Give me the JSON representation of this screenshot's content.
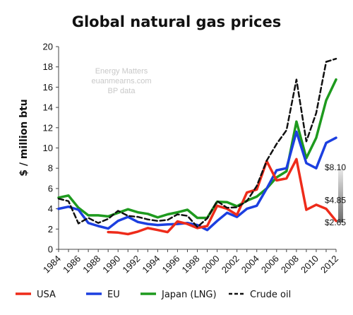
{
  "chart_data": {
    "type": "line",
    "title": "Global natural gas prices",
    "xlabel": "",
    "ylabel": "$ / million btu",
    "xlim": [
      1984,
      2012
    ],
    "ylim": [
      0,
      20
    ],
    "y_ticks": [
      0,
      2,
      4,
      6,
      8,
      10,
      12,
      14,
      16,
      18,
      20
    ],
    "x_ticks": [
      1984,
      1986,
      1988,
      1990,
      1992,
      1994,
      1996,
      1998,
      2000,
      2002,
      2004,
      2006,
      2008,
      2010,
      2012
    ],
    "grid": false,
    "legend_position": "bottom",
    "watermark": [
      "Energy Matters",
      "euanmearns.com",
      "BP data"
    ],
    "callouts": [
      {
        "label": "$8.10",
        "value": 8.1
      },
      {
        "label": "$4.85",
        "value": 4.85
      },
      {
        "label": "$2.65",
        "value": 2.65
      }
    ],
    "series": [
      {
        "name": "USA",
        "color": "#ee2b1a",
        "style": "solid",
        "x": [
          1989,
          1990,
          1991,
          1992,
          1993,
          1994,
          1995,
          1996,
          1997,
          1998,
          1999,
          2000,
          2001,
          2002,
          2003,
          2004,
          2005,
          2006,
          2007,
          2008,
          2009,
          2010,
          2011,
          2012
        ],
        "values": [
          1.7,
          1.65,
          1.5,
          1.75,
          2.1,
          1.9,
          1.7,
          2.75,
          2.5,
          2.1,
          2.3,
          4.3,
          4.0,
          3.4,
          5.6,
          5.9,
          8.7,
          6.8,
          7.0,
          8.9,
          3.9,
          4.4,
          4.0,
          2.8
        ]
      },
      {
        "name": "EU",
        "color": "#1c3fe0",
        "style": "solid",
        "x": [
          1984,
          1985,
          1986,
          1987,
          1988,
          1989,
          1990,
          1991,
          1992,
          1993,
          1994,
          1995,
          1996,
          1997,
          1998,
          1999,
          2000,
          2001,
          2002,
          2003,
          2004,
          2005,
          2006,
          2007,
          2008,
          2009,
          2010,
          2011,
          2012
        ],
        "values": [
          4.0,
          4.2,
          3.9,
          2.6,
          2.3,
          2.05,
          2.8,
          3.2,
          2.7,
          2.5,
          2.4,
          2.45,
          2.5,
          2.6,
          2.4,
          1.9,
          2.8,
          3.6,
          3.2,
          4.0,
          4.3,
          6.0,
          7.8,
          8.0,
          11.6,
          8.5,
          8.0,
          10.5,
          11.0
        ]
      },
      {
        "name": "Japan (LNG)",
        "color": "#1e9a1e",
        "style": "solid",
        "x": [
          1984,
          1985,
          1986,
          1987,
          1988,
          1989,
          1990,
          1991,
          1992,
          1993,
          1994,
          1995,
          1996,
          1997,
          1998,
          1999,
          2000,
          2001,
          2002,
          2003,
          2004,
          2005,
          2006,
          2007,
          2008,
          2009,
          2010,
          2011,
          2012
        ],
        "values": [
          5.1,
          5.3,
          4.1,
          3.35,
          3.35,
          3.25,
          3.6,
          3.95,
          3.65,
          3.5,
          3.15,
          3.45,
          3.65,
          3.9,
          3.1,
          3.1,
          4.7,
          4.65,
          4.25,
          4.8,
          5.2,
          6.0,
          7.1,
          7.7,
          12.6,
          9.0,
          11.0,
          14.7,
          16.75
        ]
      },
      {
        "name": "Crude oil",
        "color": "#111111",
        "style": "dashed",
        "x": [
          1984,
          1985,
          1986,
          1987,
          1988,
          1989,
          1990,
          1991,
          1992,
          1993,
          1994,
          1995,
          1996,
          1997,
          1998,
          1999,
          2000,
          2001,
          2002,
          2003,
          2004,
          2005,
          2006,
          2007,
          2008,
          2009,
          2010,
          2011,
          2012
        ],
        "values": [
          5.0,
          4.75,
          2.55,
          3.1,
          2.6,
          3.0,
          3.8,
          3.3,
          3.2,
          2.95,
          2.8,
          2.9,
          3.45,
          3.3,
          2.2,
          3.05,
          4.75,
          4.1,
          4.15,
          4.75,
          6.25,
          8.75,
          10.4,
          11.75,
          16.75,
          10.65,
          13.45,
          18.5,
          18.8
        ]
      }
    ]
  }
}
